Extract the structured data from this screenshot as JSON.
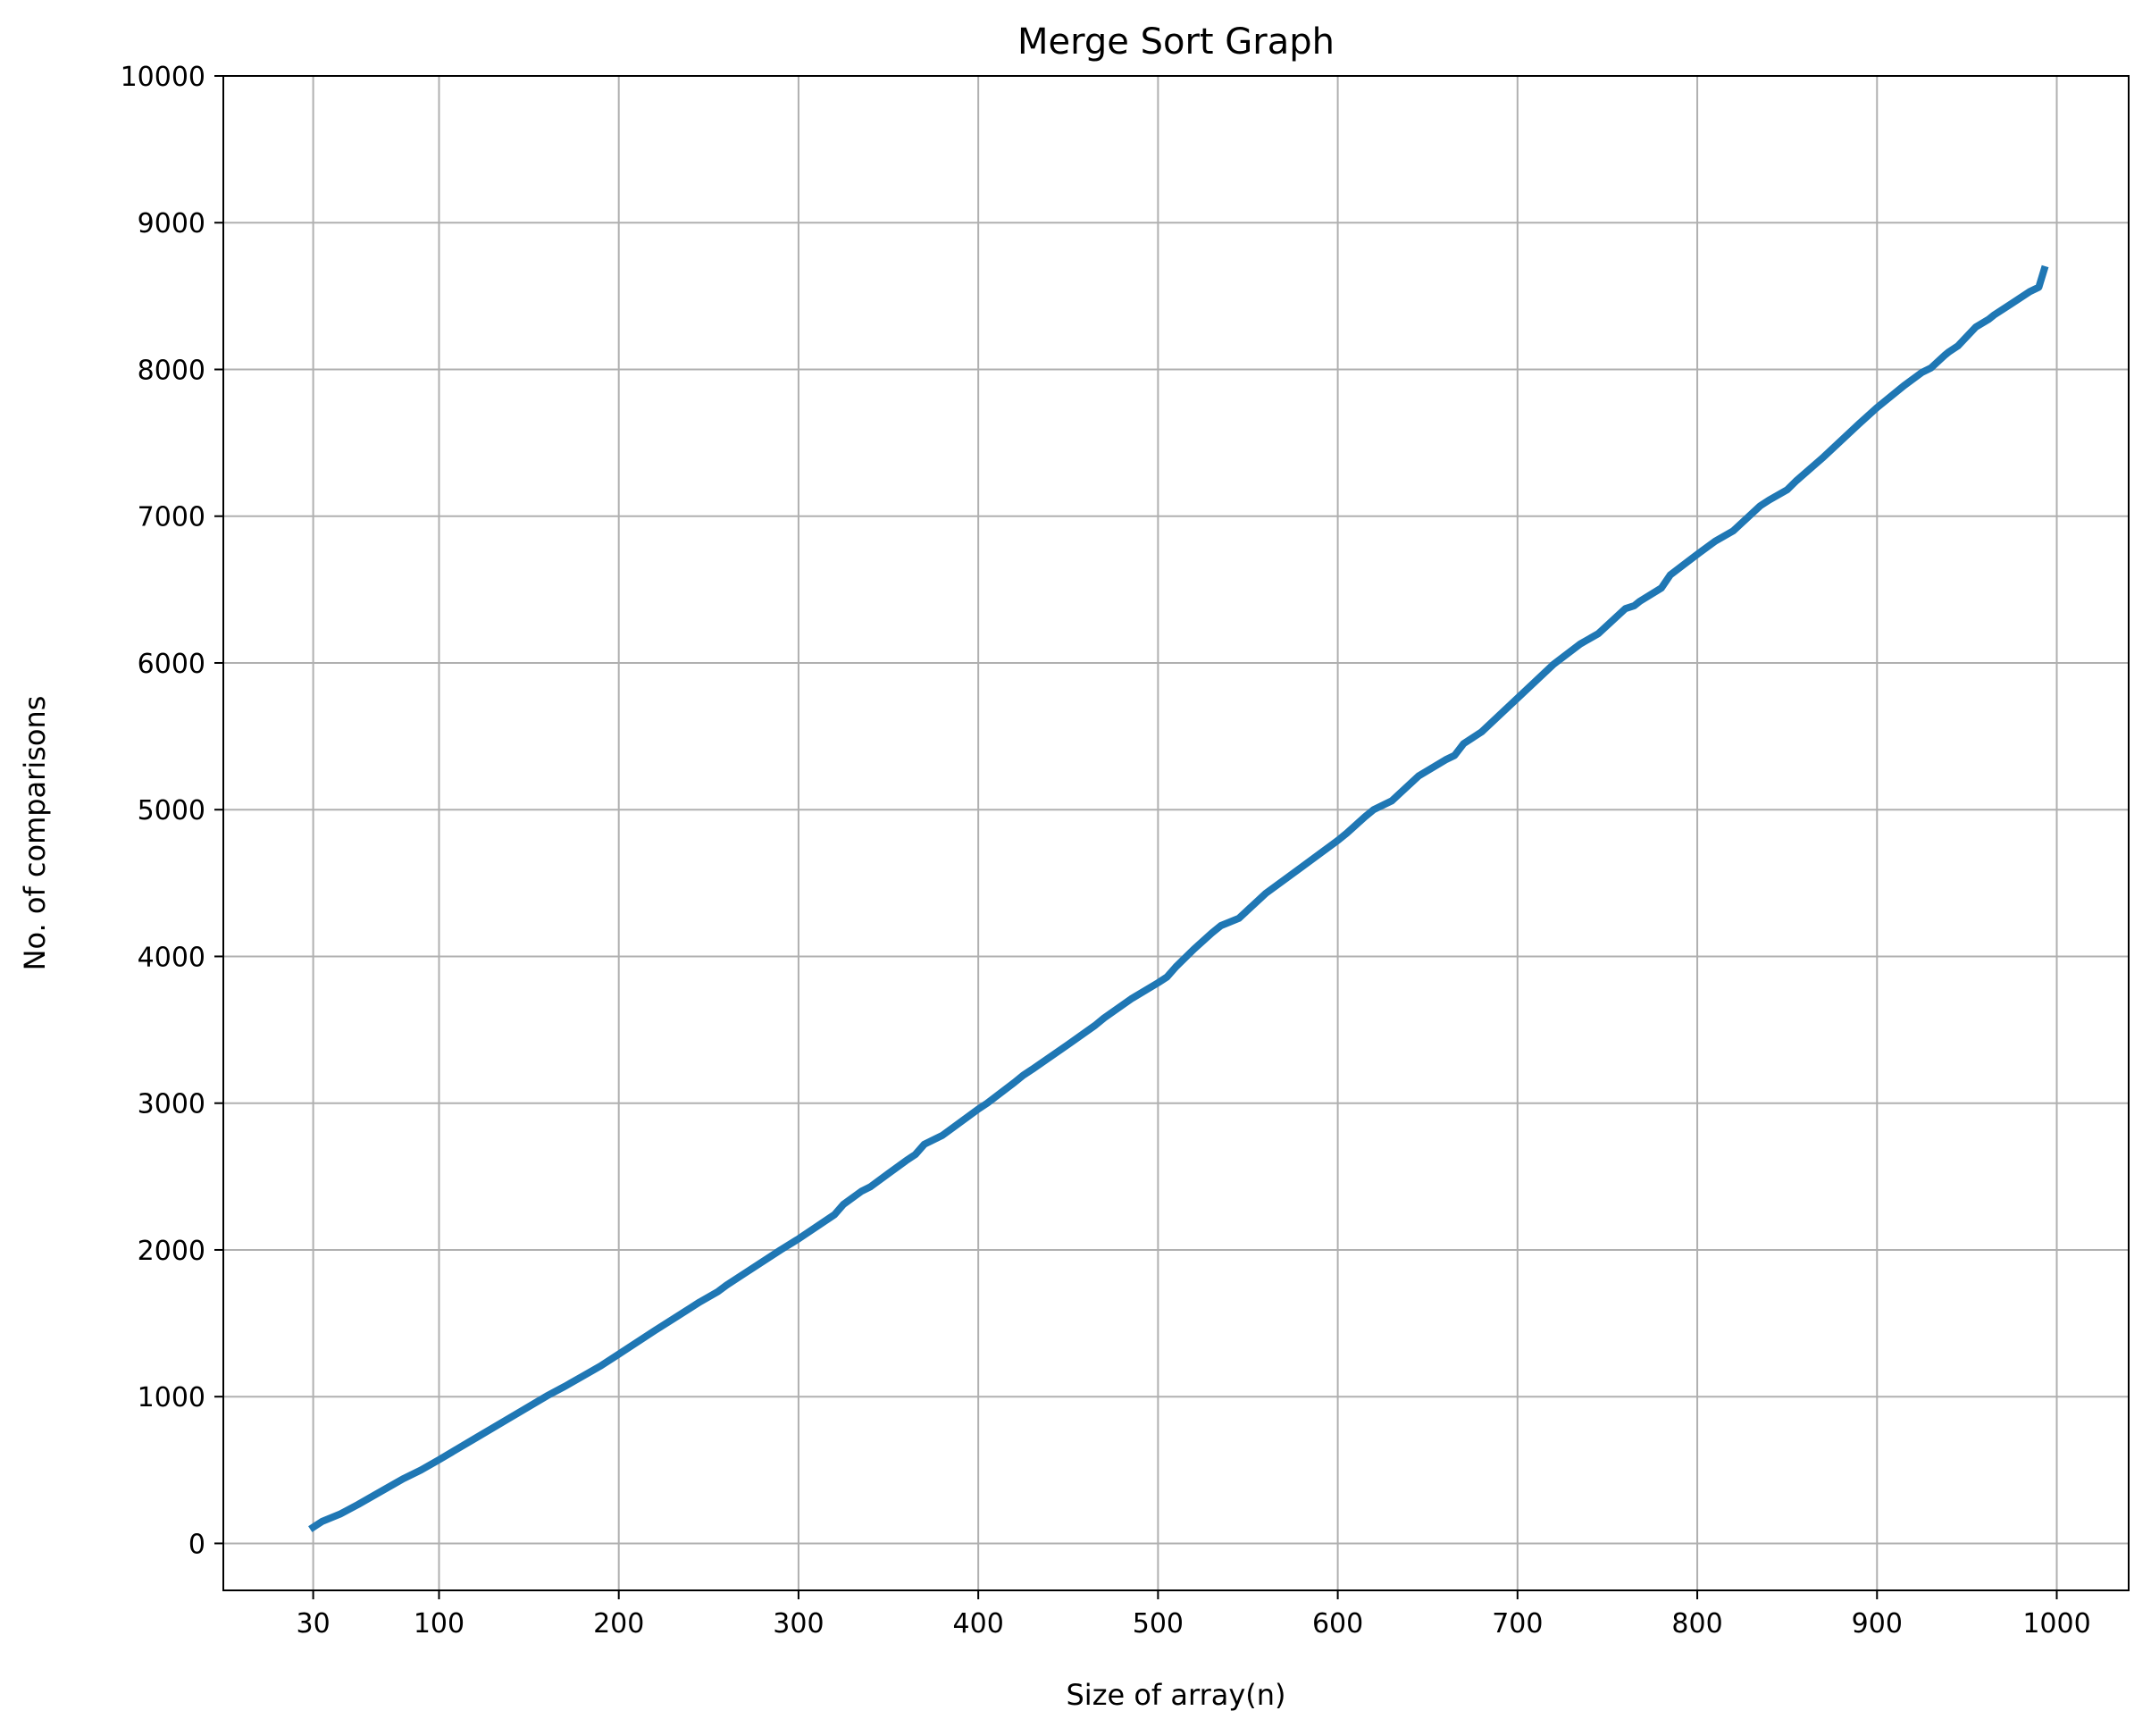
{
  "chart_data": {
    "type": "line",
    "title": "Merge Sort Graph",
    "xlabel": "Size of array(n)",
    "ylabel": "No. of comparisons",
    "xlim": [
      -20,
      1040
    ],
    "ylim": [
      -320,
      10000
    ],
    "xticks": [
      30,
      100,
      200,
      300,
      400,
      500,
      600,
      700,
      800,
      900,
      1000
    ],
    "yticks": [
      0,
      1000,
      2000,
      3000,
      4000,
      5000,
      6000,
      7000,
      8000,
      9000,
      10000
    ],
    "grid": true,
    "series": [
      {
        "color": "#1f77b4",
        "x": [
          30,
          35,
          45,
          55,
          65,
          75,
          80,
          90,
          100,
          120,
          140,
          160,
          170,
          180,
          190,
          200,
          220,
          240,
          245,
          255,
          260,
          270,
          290,
          300,
          320,
          325,
          335,
          340,
          350,
          360,
          365,
          370,
          380,
          400,
          405,
          420,
          425,
          430,
          450,
          465,
          470,
          485,
          500,
          505,
          510,
          520,
          530,
          535,
          545,
          560,
          580,
          600,
          605,
          610,
          615,
          620,
          630,
          645,
          660,
          665,
          670,
          680,
          700,
          720,
          735,
          745,
          760,
          765,
          768,
          780,
          785,
          800,
          810,
          820,
          835,
          840,
          850,
          855,
          870,
          890,
          900,
          915,
          925,
          930,
          938,
          940,
          945,
          955,
          962,
          965,
          975,
          985,
          990,
          993
        ],
        "y": [
          110,
          150,
          200,
          265,
          335,
          405,
          440,
          500,
          570,
          715,
          860,
          1005,
          1070,
          1140,
          1210,
          1290,
          1450,
          1605,
          1645,
          1715,
          1760,
          1840,
          2000,
          2075,
          2240,
          2310,
          2400,
          2430,
          2520,
          2610,
          2650,
          2720,
          2780,
          2960,
          3000,
          3140,
          3190,
          3230,
          3400,
          3530,
          3580,
          3710,
          3820,
          3860,
          3930,
          4050,
          4160,
          4210,
          4260,
          4430,
          4610,
          4790,
          4840,
          4895,
          4950,
          5000,
          5060,
          5230,
          5340,
          5370,
          5450,
          5530,
          5760,
          5990,
          6130,
          6200,
          6370,
          6390,
          6420,
          6510,
          6600,
          6740,
          6830,
          6900,
          7070,
          7110,
          7180,
          7240,
          7400,
          7630,
          7740,
          7890,
          7980,
          8010,
          8100,
          8120,
          8160,
          8290,
          8340,
          8370,
          8450,
          8530,
          8560,
          8680
        ]
      }
    ]
  }
}
